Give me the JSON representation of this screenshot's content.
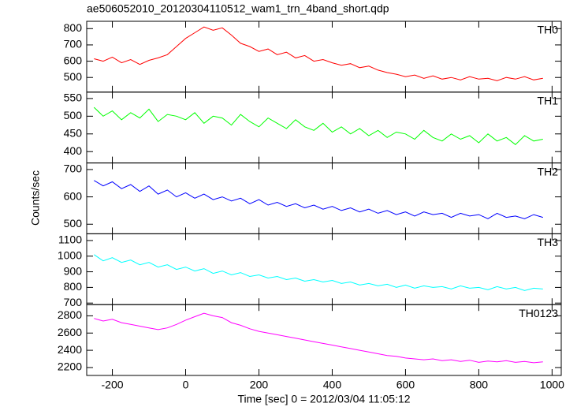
{
  "title": "ae506052010_20120304110512_wam1_trn_4band_short.qdp",
  "xlabel": "Time [sec] 0 = 2012/03/04 11:05:12",
  "ylabel": "Counts/sec",
  "x": [
    -250,
    -225,
    -200,
    -175,
    -150,
    -125,
    -100,
    -75,
    -50,
    -25,
    0,
    25,
    50,
    75,
    100,
    125,
    150,
    175,
    200,
    225,
    250,
    275,
    300,
    325,
    350,
    375,
    400,
    425,
    450,
    475,
    500,
    525,
    550,
    575,
    600,
    625,
    650,
    675,
    700,
    725,
    750,
    775,
    800,
    825,
    850,
    875,
    900,
    925,
    950,
    975
  ],
  "xlim": [
    -270,
    1025
  ],
  "xticks": [
    -200,
    0,
    200,
    400,
    600,
    800,
    1000
  ],
  "chart_data": [
    {
      "type": "line",
      "ylim": [
        410,
        845
      ],
      "yticks": [
        500,
        600,
        700,
        800
      ],
      "series": [
        {
          "name": "TH0",
          "color": "#ff0000",
          "values": [
            615,
            600,
            625,
            590,
            610,
            580,
            605,
            620,
            640,
            690,
            740,
            775,
            810,
            790,
            805,
            760,
            710,
            690,
            660,
            675,
            640,
            655,
            620,
            635,
            600,
            610,
            590,
            575,
            585,
            560,
            570,
            545,
            530,
            520,
            505,
            515,
            495,
            510,
            490,
            500,
            485,
            505,
            490,
            495,
            480,
            500,
            490,
            505,
            485,
            495
          ]
        }
      ]
    },
    {
      "type": "line",
      "ylim": [
        368,
        568
      ],
      "yticks": [
        400,
        450,
        500,
        550
      ],
      "series": [
        {
          "name": "TH1",
          "color": "#00ff00",
          "values": [
            525,
            500,
            515,
            490,
            510,
            495,
            520,
            485,
            505,
            500,
            490,
            510,
            480,
            500,
            495,
            475,
            505,
            485,
            470,
            495,
            480,
            465,
            490,
            470,
            460,
            480,
            455,
            470,
            450,
            465,
            445,
            460,
            440,
            455,
            450,
            435,
            460,
            440,
            430,
            450,
            435,
            445,
            425,
            450,
            430,
            440,
            420,
            445,
            430,
            435
          ]
        }
      ]
    },
    {
      "type": "line",
      "ylim": [
        465,
        724
      ],
      "yticks": [
        500,
        600,
        700
      ],
      "series": [
        {
          "name": "TH2",
          "color": "#0000ff",
          "values": [
            660,
            640,
            655,
            630,
            645,
            620,
            640,
            610,
            625,
            600,
            615,
            595,
            610,
            590,
            600,
            585,
            595,
            575,
            590,
            570,
            580,
            565,
            575,
            560,
            570,
            555,
            565,
            550,
            560,
            545,
            555,
            540,
            550,
            535,
            545,
            530,
            545,
            535,
            540,
            525,
            540,
            530,
            535,
            520,
            540,
            525,
            530,
            520,
            535,
            525
          ]
        }
      ]
    },
    {
      "type": "line",
      "ylim": [
        690,
        1143
      ],
      "yticks": [
        700,
        800,
        900,
        1000,
        1100
      ],
      "series": [
        {
          "name": "TH3",
          "color": "#00ffff",
          "values": [
            1010,
            970,
            990,
            960,
            975,
            945,
            960,
            930,
            945,
            915,
            930,
            905,
            920,
            890,
            905,
            880,
            895,
            870,
            880,
            860,
            870,
            850,
            860,
            840,
            850,
            835,
            845,
            825,
            835,
            815,
            825,
            810,
            820,
            800,
            815,
            795,
            810,
            800,
            805,
            790,
            810,
            795,
            800,
            785,
            805,
            790,
            800,
            780,
            795,
            790
          ]
        }
      ]
    },
    {
      "type": "line",
      "ylim": [
        2108,
        2930
      ],
      "yticks": [
        2200,
        2400,
        2600,
        2800
      ],
      "series": [
        {
          "name": "TH0123",
          "color": "#ff00ff",
          "values": [
            2770,
            2740,
            2760,
            2720,
            2700,
            2680,
            2660,
            2640,
            2660,
            2700,
            2750,
            2790,
            2830,
            2800,
            2780,
            2720,
            2690,
            2650,
            2620,
            2600,
            2580,
            2560,
            2540,
            2520,
            2500,
            2480,
            2460,
            2440,
            2420,
            2400,
            2380,
            2360,
            2340,
            2330,
            2310,
            2300,
            2290,
            2300,
            2280,
            2290,
            2270,
            2285,
            2260,
            2275,
            2265,
            2280,
            2260,
            2270,
            2255,
            2265
          ]
        }
      ]
    }
  ]
}
